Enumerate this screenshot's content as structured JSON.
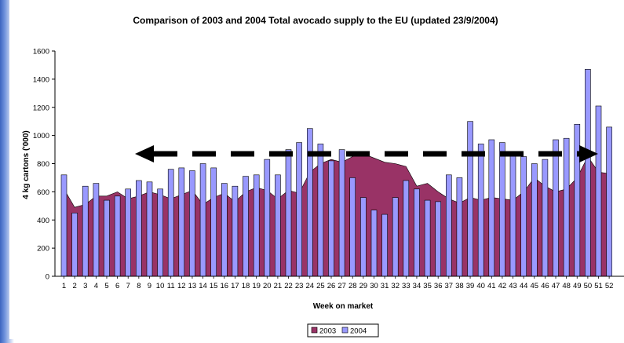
{
  "chart_data": {
    "type": "bar",
    "title": "Comparison of 2003 and 2004 Total avocado supply to the EU (updated 23/9/2004)",
    "xlabel": "Week on market",
    "ylabel": "4 kg cartons ('000)",
    "ylim": [
      0,
      1600
    ],
    "yticks": [
      0,
      200,
      400,
      600,
      800,
      1000,
      1200,
      1400,
      1600
    ],
    "grid": false,
    "legend_position": "bottom",
    "categories": [
      "1",
      "2",
      "3",
      "4",
      "5",
      "6",
      "7",
      "8",
      "9",
      "10",
      "11",
      "12",
      "13",
      "14",
      "15",
      "16",
      "17",
      "18",
      "19",
      "20",
      "21",
      "22",
      "23",
      "24",
      "25",
      "26",
      "27",
      "28",
      "29",
      "30",
      "31",
      "32",
      "33",
      "34",
      "35",
      "36",
      "37",
      "38",
      "39",
      "40",
      "41",
      "42",
      "43",
      "44",
      "45",
      "46",
      "47",
      "48",
      "49",
      "50",
      "51",
      "52"
    ],
    "series": [
      {
        "name": "2003",
        "type": "area",
        "color": "#993366",
        "values": [
          620,
          490,
          510,
          570,
          570,
          600,
          550,
          570,
          600,
          580,
          550,
          580,
          610,
          510,
          560,
          590,
          530,
          600,
          630,
          610,
          550,
          610,
          590,
          740,
          800,
          830,
          810,
          850,
          870,
          840,
          810,
          800,
          780,
          640,
          660,
          600,
          550,
          520,
          560,
          540,
          560,
          550,
          540,
          600,
          700,
          640,
          600,
          620,
          700,
          850,
          740,
          730
        ]
      },
      {
        "name": "2004",
        "type": "bar",
        "color": "#9999ff",
        "values": [
          720,
          450,
          640,
          660,
          540,
          570,
          620,
          680,
          670,
          620,
          760,
          770,
          750,
          800,
          770,
          660,
          640,
          710,
          720,
          830,
          720,
          900,
          950,
          1050,
          940,
          820,
          900,
          700,
          560,
          470,
          440,
          560,
          680,
          620,
          540,
          530,
          720,
          700,
          1100,
          940,
          970,
          950,
          880,
          850,
          800,
          830,
          970,
          980,
          1080,
          1470,
          1210,
          1060
        ]
      }
    ],
    "annotation": "double-headed dashed arrow across the chart at about 870"
  }
}
